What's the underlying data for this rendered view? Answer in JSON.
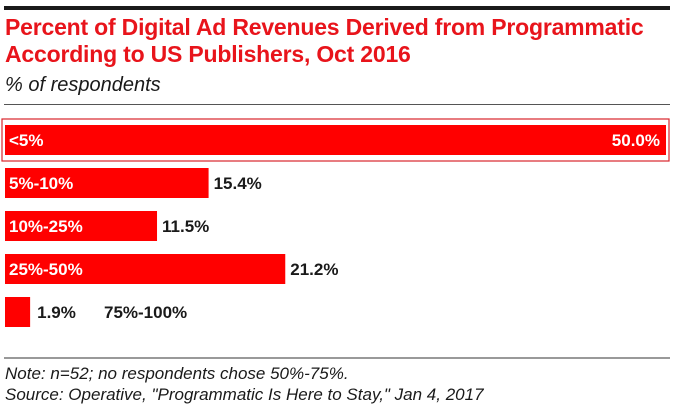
{
  "title": "Percent of Digital Ad Revenues Derived from Programmatic According to US Publishers, Oct 2016",
  "subtitle": "% of respondents",
  "note": "Note: n=52; no respondents chose 50%-75%.",
  "source": "Source: Operative, \"Programmatic Is Here to Stay,\" Jan 4, 2017",
  "colors": {
    "bar": "#ff0000",
    "highlight_outline": "#d9242b",
    "title": "#e8141b"
  },
  "chart_data": {
    "type": "bar",
    "orientation": "horizontal",
    "categories": [
      "<5%",
      "5%-10%",
      "10%-25%",
      "25%-50%",
      "75%-100%"
    ],
    "values": [
      50.0,
      15.4,
      11.5,
      21.2,
      1.9
    ],
    "value_labels": [
      "50.0%",
      "15.4%",
      "11.5%",
      "21.2%",
      "1.9%"
    ],
    "highlighted_category": "<5%",
    "xlim": [
      0,
      50
    ]
  }
}
